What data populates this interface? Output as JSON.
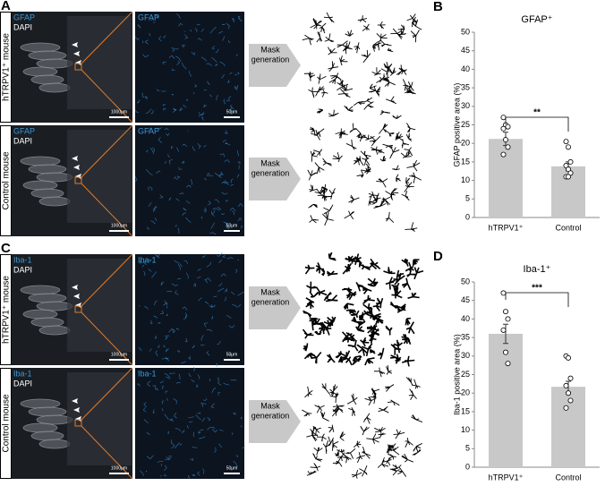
{
  "panels": [
    {
      "letter": "A",
      "rows": [
        {
          "row_label": "hTRPV1⁺ mouse",
          "stain": "GFAP",
          "counterstain": "DAPI",
          "zoom_stain": "GFAP",
          "scale_overview": "1000μm",
          "scale_zoom": "50μm",
          "process": [
            "Mask",
            "generation"
          ]
        },
        {
          "row_label": "Control mouse",
          "stain": "GFAP",
          "counterstain": "DAPI",
          "zoom_stain": "GFAP",
          "scale_overview": "1000μm",
          "scale_zoom": "50μm",
          "process": [
            "Mask",
            "generation"
          ]
        }
      ]
    },
    {
      "letter": "C",
      "rows": [
        {
          "row_label": "hTRPV1⁺ mouse",
          "stain": "Iba-1",
          "counterstain": "DAPI",
          "zoom_stain": "Iba-1",
          "scale_overview": "1000μm",
          "scale_zoom": "50μm",
          "process": [
            "Mask",
            "generation"
          ]
        },
        {
          "row_label": "Control mouse",
          "stain": "Iba-1",
          "counterstain": "DAPI",
          "zoom_stain": "Iba-1",
          "scale_overview": "1000μm",
          "scale_zoom": "50μm",
          "process": [
            "Mask",
            "generation"
          ]
        }
      ]
    }
  ],
  "chart_data": [
    {
      "type": "bar",
      "panel": "B",
      "title": "GFAP⁺",
      "y_label": "GFAP positive area (%)",
      "categories": [
        "hTRPV1⁺",
        "Control"
      ],
      "values": [
        21.2,
        13.8
      ],
      "errors": [
        1.8,
        1.2
      ],
      "points": [
        [
          27,
          25,
          24.5,
          24,
          21,
          19,
          17
        ],
        [
          20.5,
          19,
          15,
          14,
          13,
          12,
          11,
          11
        ]
      ],
      "color": "#c8c8c8",
      "significance": "**",
      "ylim": [
        0,
        50
      ],
      "yticks": [
        0,
        5,
        10,
        15,
        20,
        25,
        30,
        35,
        40,
        45,
        50
      ]
    },
    {
      "type": "bar",
      "panel": "D",
      "title": "Iba-1⁺",
      "y_label": "Iba-1 positive area (%)",
      "categories": [
        "hTRPV1⁺",
        "Control"
      ],
      "values": [
        36,
        21.7
      ],
      "errors": [
        2.6,
        1.5
      ],
      "points": [
        [
          47,
          42,
          40,
          37,
          31,
          28
        ],
        [
          30,
          29.5,
          24,
          22,
          20,
          18,
          16
        ]
      ],
      "color": "#c8c8c8",
      "significance": "***",
      "ylim": [
        0,
        50
      ],
      "yticks": [
        0,
        5,
        10,
        15,
        20,
        25,
        30,
        35,
        40,
        45,
        50
      ]
    }
  ]
}
